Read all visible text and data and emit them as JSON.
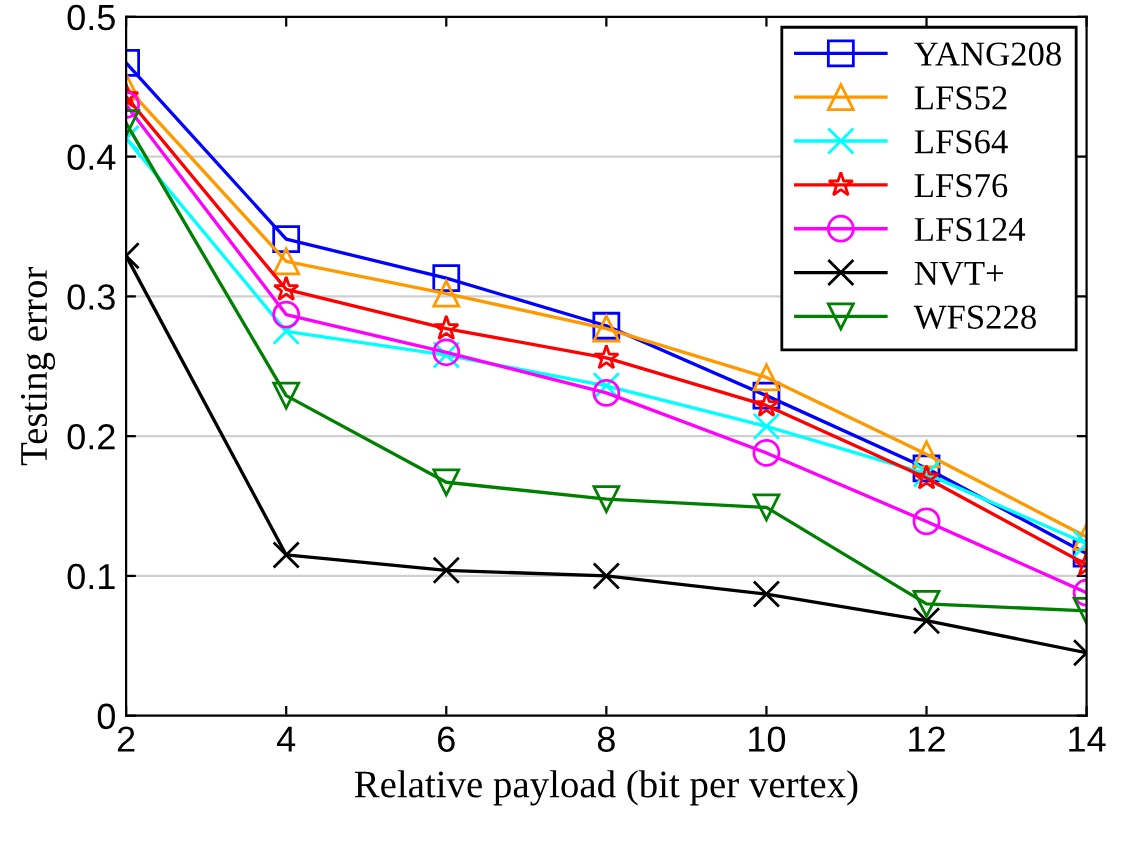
{
  "chart_data": {
    "type": "line",
    "xlabel": "Relative payload (bit per vertex)",
    "ylabel": "Testing error",
    "x": [
      2,
      4,
      6,
      8,
      10,
      12,
      14
    ],
    "xlim": [
      2,
      14
    ],
    "xticks": [
      2,
      4,
      6,
      8,
      10,
      12,
      14
    ],
    "ylim": [
      0,
      0.5
    ],
    "yticks": [
      0,
      0.1,
      0.2,
      0.3,
      0.4,
      0.5
    ],
    "grid": "y",
    "legend": "top right",
    "line_style": "solid",
    "series": [
      {
        "name": "YANG208",
        "color": "#0000ff",
        "marker": "square",
        "values": [
          0.467,
          0.341,
          0.313,
          0.279,
          0.229,
          0.177,
          0.116
        ]
      },
      {
        "name": "LFS52",
        "color": "#ff9900",
        "marker": "triangle",
        "values": [
          0.45,
          0.325,
          0.302,
          0.277,
          0.242,
          0.187,
          0.128
        ]
      },
      {
        "name": "LFS64",
        "color": "#00ffff",
        "marker": "cross",
        "values": [
          0.413,
          0.275,
          0.258,
          0.236,
          0.207,
          0.173,
          0.123
        ]
      },
      {
        "name": "LFS76",
        "color": "#ff0000",
        "marker": "star",
        "values": [
          0.443,
          0.305,
          0.277,
          0.256,
          0.222,
          0.17,
          0.108
        ]
      },
      {
        "name": "LFS124",
        "color": "#ff00ff",
        "marker": "circle",
        "values": [
          0.437,
          0.287,
          0.26,
          0.231,
          0.188,
          0.139,
          0.088
        ]
      },
      {
        "name": "NVT+",
        "color": "#000000",
        "marker": "cross",
        "values": [
          0.329,
          0.115,
          0.104,
          0.1,
          0.087,
          0.068,
          0.045
        ]
      },
      {
        "name": "WFS228",
        "color": "#008000",
        "marker": "triangle_down",
        "values": [
          0.424,
          0.229,
          0.167,
          0.155,
          0.149,
          0.08,
          0.075
        ]
      }
    ]
  }
}
